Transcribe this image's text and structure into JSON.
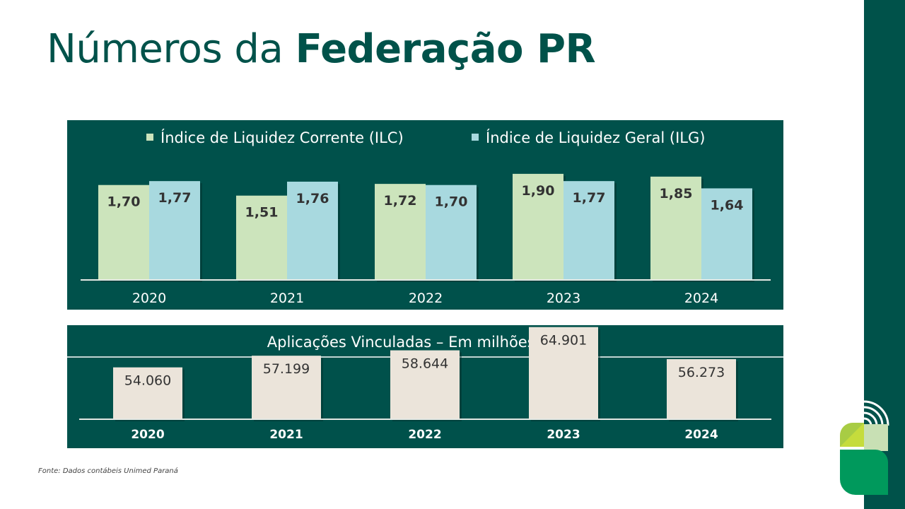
{
  "title": {
    "regular": "Números da ",
    "bold": "Federação PR"
  },
  "source": "Fonte: Dados contábeis Unimed Paraná",
  "colors": {
    "dark_green": "#00524a",
    "panel": "#00514b",
    "ilc": "#cce4bc",
    "ilg": "#a8d9df",
    "applications": "#ebe4da"
  },
  "chart_data": [
    {
      "type": "bar",
      "categories": [
        "2020",
        "2021",
        "2022",
        "2023",
        "2024"
      ],
      "series": [
        {
          "name": "Índice de Liquidez Corrente (ILC)",
          "values": [
            1.7,
            1.51,
            1.72,
            1.9,
            1.85
          ],
          "labels": [
            "1,70",
            "1,51",
            "1,72",
            "1,90",
            "1,85"
          ]
        },
        {
          "name": "Índice de Liquidez Geral (ILG)",
          "values": [
            1.77,
            1.76,
            1.7,
            1.77,
            1.64
          ],
          "labels": [
            "1,77",
            "1,76",
            "1,70",
            "1,77",
            "1,64"
          ]
        }
      ],
      "legend": "top",
      "grid": false
    },
    {
      "type": "bar",
      "title": "Aplicações Vinculadas – Em milhões de R$",
      "categories": [
        "2020",
        "2021",
        "2022",
        "2023",
        "2024"
      ],
      "values": [
        54060,
        57199,
        58644,
        64901,
        56273
      ],
      "labels": [
        "54.060",
        "57.199",
        "58.644",
        "64.901",
        "56.273"
      ],
      "grid": false
    }
  ]
}
